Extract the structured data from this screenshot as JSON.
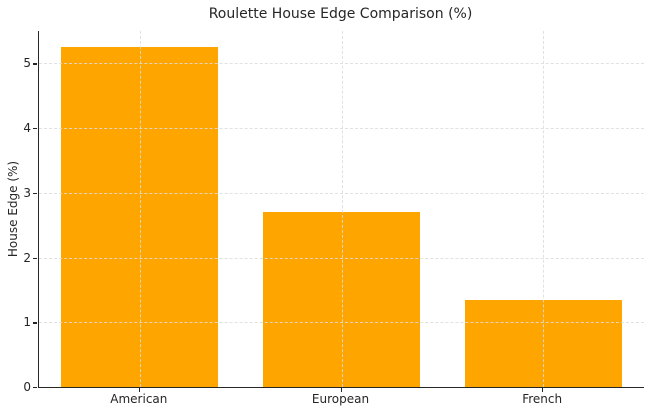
{
  "chart_data": {
    "type": "bar",
    "title": "Roulette House Edge Comparison (%)",
    "categories": [
      "American",
      "European",
      "French"
    ],
    "values": [
      5.26,
      2.7,
      1.35
    ],
    "xlabel": "",
    "ylabel": "House Edge (%)",
    "ylim": [
      0,
      5.5
    ],
    "yticks": [
      0,
      1,
      2,
      3,
      4,
      5
    ],
    "grid": true,
    "grid_style": "dashed",
    "legend": "none",
    "bar_width_fraction": 0.78
  },
  "style": {
    "bar_color": "#FFA500",
    "grid_color": "#DCDCDC",
    "spine_color": "#262626",
    "text_color": "#262626",
    "background_color": "#FFFFFF"
  }
}
